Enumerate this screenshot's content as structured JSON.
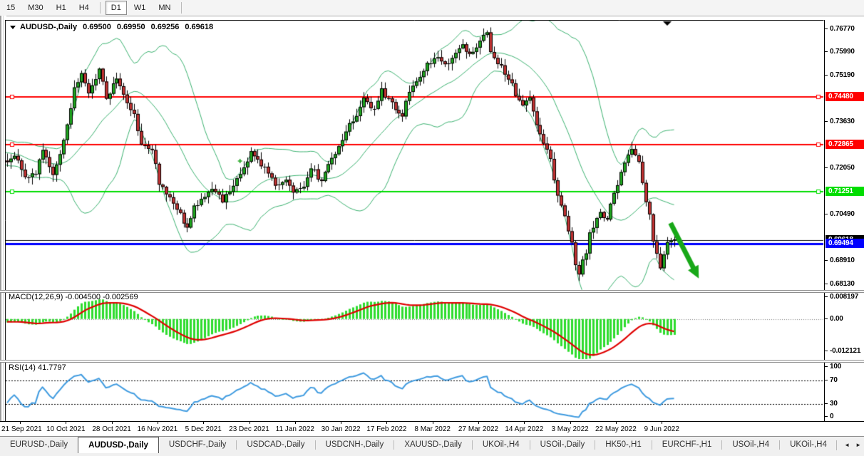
{
  "toolbar": {
    "timeframes": [
      {
        "label": "15",
        "active": false,
        "sep_after": false
      },
      {
        "label": "M30",
        "active": false,
        "sep_after": false
      },
      {
        "label": "H1",
        "active": false,
        "sep_after": false
      },
      {
        "label": "H4",
        "active": false,
        "sep_after": true
      },
      {
        "label": "D1",
        "active": true,
        "sep_after": false
      },
      {
        "label": "W1",
        "active": false,
        "sep_after": false
      },
      {
        "label": "MN",
        "active": false,
        "sep_after": true
      }
    ]
  },
  "chart": {
    "symbol": "AUDUSD-,Daily",
    "ohlc": {
      "open": "0.69500",
      "high": "0.69950",
      "low": "0.69256",
      "close": "0.69618"
    }
  },
  "chart_data": {
    "type": "candlestick",
    "symbol": "AUDUSD",
    "timeframe": "Daily",
    "bar_count": 190,
    "y_axis": {
      "ticks": [
        0.7677,
        0.7599,
        0.7519,
        0.7363,
        0.7205,
        0.7049,
        0.6891,
        0.6813
      ],
      "decimals": 5
    },
    "x_axis_dates": [
      "21 Sep 2021",
      "10 Oct 2021",
      "28 Oct 2021",
      "16 Nov 2021",
      "5 Dec 2021",
      "23 Dec 2021",
      "11 Jan 2022",
      "30 Jan 2022",
      "17 Feb 2022",
      "8 Mar 2022",
      "27 Mar 2022",
      "14 Apr 2022",
      "3 May 2022",
      "22 May 2022",
      "9 Jun 2022"
    ],
    "levels": [
      {
        "price": 0.7448,
        "axis_label": "0.74480",
        "color": "#FF0000",
        "width": 2,
        "squares": true,
        "z": 3
      },
      {
        "price": 0.72865,
        "axis_label": "0.72865",
        "color": "#FF0000",
        "width": 2,
        "squares": true,
        "z": 3
      },
      {
        "price": 0.71251,
        "axis_label": "0.71251",
        "color": "#00DD00",
        "width": 2,
        "squares": true,
        "z": 3
      },
      {
        "price": 0.69618,
        "axis_label": "0.69618",
        "color": "#000000",
        "width": 1,
        "squares": false,
        "z": 4
      },
      {
        "price": 0.69494,
        "axis_label": "0.69494",
        "color": "#0000FF",
        "width": 3,
        "squares": false,
        "z": 5
      }
    ],
    "price_anchors": [
      [
        -40,
        0.73
      ],
      [
        -28,
        0.7255
      ],
      [
        -14,
        0.7285
      ],
      [
        -6,
        0.724
      ],
      [
        0,
        0.7225
      ],
      [
        2,
        0.7252
      ],
      [
        5,
        0.717
      ],
      [
        8,
        0.7195
      ],
      [
        10,
        0.7262
      ],
      [
        13,
        0.7185
      ],
      [
        16,
        0.73
      ],
      [
        19,
        0.747
      ],
      [
        21,
        0.753
      ],
      [
        23,
        0.7462
      ],
      [
        26,
        0.7542
      ],
      [
        28,
        0.7448
      ],
      [
        31,
        0.7505
      ],
      [
        33,
        0.7452
      ],
      [
        36,
        0.739
      ],
      [
        38,
        0.7288
      ],
      [
        41,
        0.7268
      ],
      [
        43,
        0.7158
      ],
      [
        46,
        0.7105
      ],
      [
        49,
        0.7048
      ],
      [
        51,
        0.7002
      ],
      [
        53,
        0.7078
      ],
      [
        56,
        0.7108
      ],
      [
        59,
        0.7135
      ],
      [
        61,
        0.7098
      ],
      [
        63,
        0.7122
      ],
      [
        66,
        0.7195
      ],
      [
        69,
        0.7255
      ],
      [
        71,
        0.723
      ],
      [
        74,
        0.7195
      ],
      [
        76,
        0.7148
      ],
      [
        79,
        0.7162
      ],
      [
        81,
        0.7125
      ],
      [
        84,
        0.7152
      ],
      [
        86,
        0.721
      ],
      [
        89,
        0.7158
      ],
      [
        91,
        0.721
      ],
      [
        94,
        0.7282
      ],
      [
        96,
        0.733
      ],
      [
        99,
        0.7392
      ],
      [
        101,
        0.7438
      ],
      [
        104,
        0.7408
      ],
      [
        106,
        0.747
      ],
      [
        109,
        0.742
      ],
      [
        112,
        0.7388
      ],
      [
        114,
        0.746
      ],
      [
        117,
        0.7522
      ],
      [
        119,
        0.7558
      ],
      [
        122,
        0.7588
      ],
      [
        124,
        0.7558
      ],
      [
        127,
        0.7588
      ],
      [
        129,
        0.7618
      ],
      [
        131,
        0.7598
      ],
      [
        133,
        0.7618
      ],
      [
        135,
        0.7648
      ],
      [
        136,
        0.766
      ],
      [
        137,
        0.76
      ],
      [
        139,
        0.756
      ],
      [
        141,
        0.753
      ],
      [
        143,
        0.7492
      ],
      [
        144,
        0.7452
      ],
      [
        146,
        0.7422
      ],
      [
        148,
        0.7442
      ],
      [
        149,
        0.7398
      ],
      [
        150,
        0.7352
      ],
      [
        152,
        0.7292
      ],
      [
        154,
        0.7232
      ],
      [
        155,
        0.7162
      ],
      [
        156,
        0.7105
      ],
      [
        158,
        0.7042
      ],
      [
        160,
        0.6962
      ],
      [
        161,
        0.6885
      ],
      [
        162,
        0.6852
      ],
      [
        164,
        0.6922
      ],
      [
        165,
        0.6988
      ],
      [
        167,
        0.7028
      ],
      [
        168,
        0.7058
      ],
      [
        170,
        0.7032
      ],
      [
        171,
        0.7088
      ],
      [
        173,
        0.7148
      ],
      [
        174,
        0.7198
      ],
      [
        176,
        0.7248
      ],
      [
        177,
        0.7278
      ],
      [
        179,
        0.7228
      ],
      [
        180,
        0.7148
      ],
      [
        182,
        0.7048
      ],
      [
        183,
        0.6952
      ],
      [
        185,
        0.6868
      ],
      [
        186,
        0.692
      ],
      [
        187,
        0.6958
      ],
      [
        189,
        0.6962
      ]
    ],
    "indicators": {
      "bollinger": {
        "period": 20,
        "deviation": 2,
        "color": "#3CB371"
      },
      "macd": {
        "label": "MACD(12,26,9)",
        "values_text": "-0.004500 -0.002569",
        "axis": [
          {
            "text": "0.008197",
            "value": 0.008197
          },
          {
            "text": "0.00",
            "value": 0
          },
          {
            "text": "-0.012121",
            "value": -0.012121
          }
        ],
        "histogram_color": "#2EDC2E",
        "signal_color": "#E00000"
      },
      "rsi": {
        "label": "RSI(14)",
        "value_text": "41.7797",
        "axis": [
          {
            "text": "100",
            "value": 100
          },
          {
            "text": "70",
            "value": 70
          },
          {
            "text": "30",
            "value": 30
          },
          {
            "text": "0",
            "value": 0
          }
        ],
        "line_color": "#3F9BE0",
        "dashed_levels": [
          70,
          30
        ]
      }
    },
    "annotations": {
      "arrow": {
        "color": "#18A818",
        "from": {
          "bar": 188,
          "price": 0.702
        },
        "to": {
          "bar": 196,
          "price": 0.6832
        }
      }
    },
    "markers": {
      "scroll_marker_bar": 187,
      "plus": {
        "bar": 66,
        "price": 0.723,
        "color": "#1FA51F"
      }
    },
    "colors": {
      "up": "#1FA51F",
      "down": "#C13232",
      "wick": "#000000"
    }
  },
  "tabs": {
    "items": [
      {
        "label": "EURUSD-,Daily",
        "active": false
      },
      {
        "label": "AUDUSD-,Daily",
        "active": true
      },
      {
        "label": "USDCHF-,Daily",
        "active": false
      },
      {
        "label": "USDCAD-,Daily",
        "active": false
      },
      {
        "label": "USDCNH-,Daily",
        "active": false
      },
      {
        "label": "XAUUSD-,Daily",
        "active": false
      },
      {
        "label": "UKOil-,H4",
        "active": false
      },
      {
        "label": "USOil-,Daily",
        "active": false
      },
      {
        "label": "HK50-,H1",
        "active": false
      },
      {
        "label": "EURCHF-,H1",
        "active": false
      },
      {
        "label": "USOil-,H4",
        "active": false
      },
      {
        "label": "UKOil-,H4",
        "active": false
      }
    ],
    "scroll_left": "◄",
    "scroll_right": "►"
  }
}
